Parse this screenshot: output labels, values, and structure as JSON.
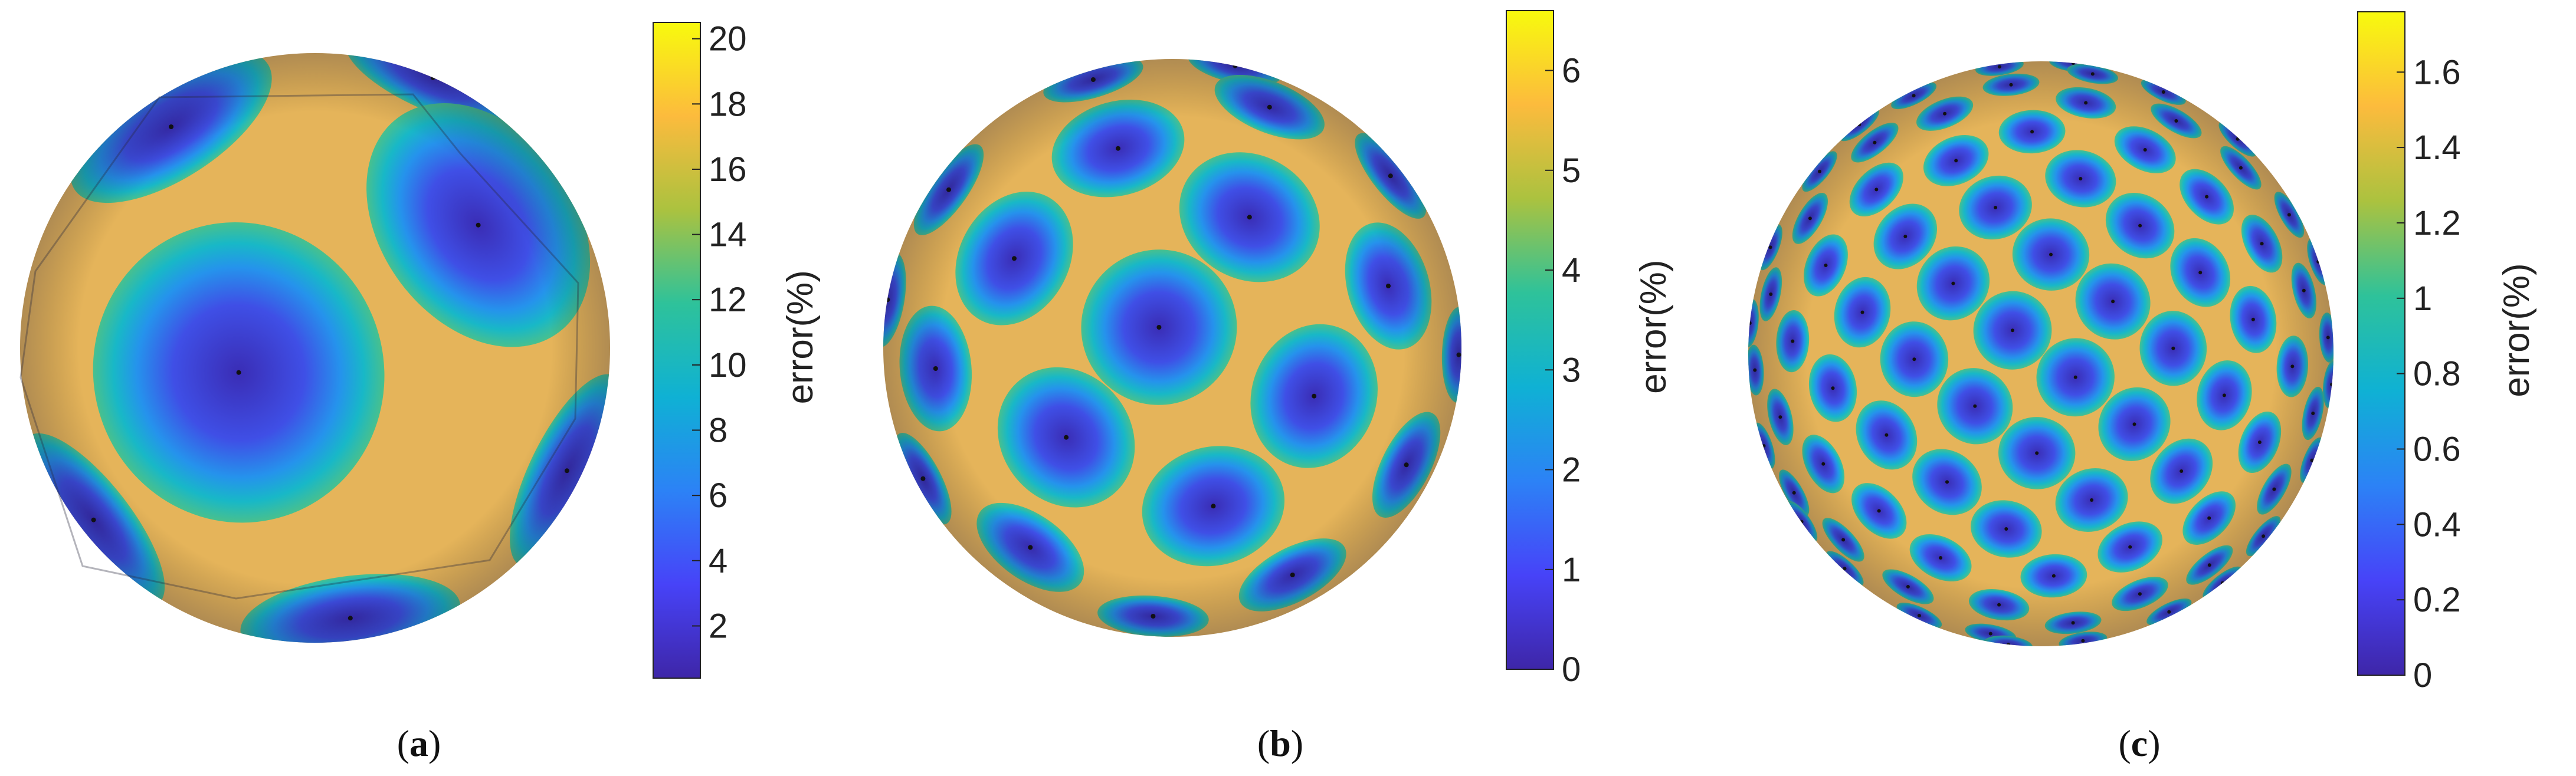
{
  "figure": {
    "colormap": [
      "#3e26a8",
      "#4743f8",
      "#2c82f6",
      "#0fb1d4",
      "#2ec29a",
      "#abc23f",
      "#fcbb3d",
      "#f8fa0d"
    ],
    "error_low_color": "#3a2db5",
    "error_high_color": "#e5b45a",
    "panels": [
      {
        "caption_letter": "a",
        "colorbar_label": "error(%)",
        "colorbar_ticks": [
          "2",
          "4",
          "6",
          "8",
          "10",
          "12",
          "14",
          "16",
          "18",
          "20"
        ],
        "colorbar_min": 0.4,
        "colorbar_max": 20.5
      },
      {
        "caption_letter": "b",
        "colorbar_label": "error(%)",
        "colorbar_ticks": [
          "0",
          "1",
          "2",
          "3",
          "4",
          "5",
          "6"
        ],
        "colorbar_min": 0,
        "colorbar_max": 6.6
      },
      {
        "caption_letter": "c",
        "colorbar_label": "error(%)",
        "colorbar_ticks": [
          "0",
          "0.2",
          "0.4",
          "0.6",
          "0.8",
          "1",
          "1.2",
          "1.4",
          "1.6"
        ],
        "colorbar_min": 0,
        "colorbar_max": 1.76
      }
    ]
  }
}
